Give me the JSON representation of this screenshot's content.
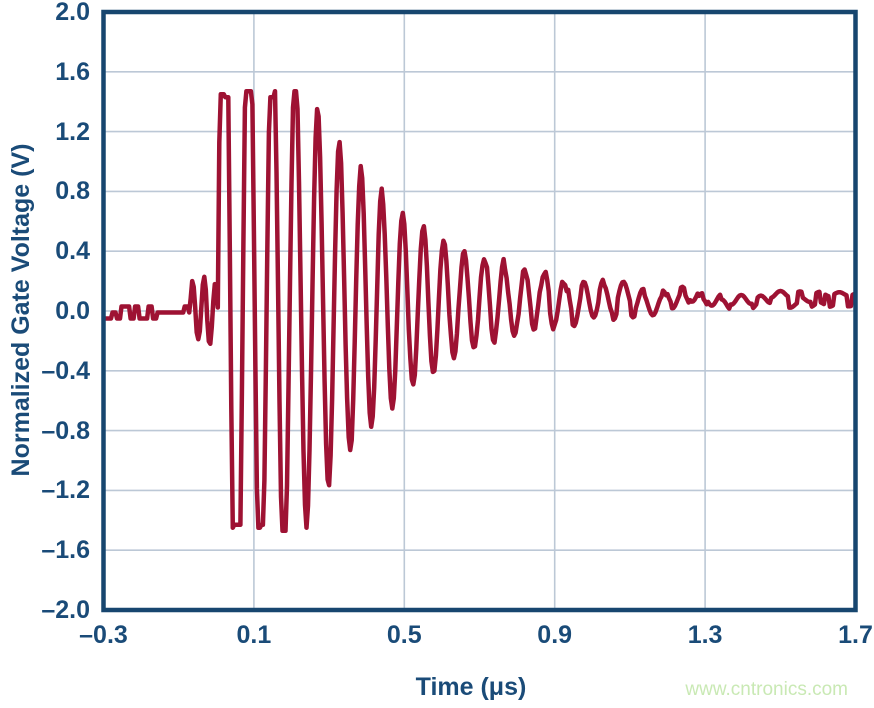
{
  "page": {
    "background_color": "#ffffff",
    "text_color": "#1a4b78"
  },
  "watermark": {
    "text": "www.cntronics.com",
    "color": "#c9e9b4"
  },
  "chart_data": {
    "type": "line",
    "title": "",
    "xlabel": "Time (μs)",
    "ylabel": "Normalized Gate Voltage (V)",
    "xlim": [
      -0.3,
      1.7
    ],
    "ylim": [
      -2.0,
      2.0
    ],
    "x_ticks": {
      "values": [
        -0.3,
        0.1,
        0.5,
        0.9,
        1.3,
        1.7
      ],
      "labels": [
        "–0.3",
        "0.1",
        "0.5",
        "0.9",
        "1.3",
        "1.7"
      ]
    },
    "y_ticks": {
      "values": [
        2.0,
        1.6,
        1.2,
        0.8,
        0.4,
        0.0,
        -0.4,
        -0.8,
        -1.2,
        -1.6,
        -2.0
      ],
      "labels": [
        "2.0",
        "1.6",
        "1.2",
        "0.8",
        "0.4",
        "0.0",
        "–0.4",
        "–0.8",
        "–1.2",
        "–1.6",
        "–2.0"
      ]
    },
    "grid": {
      "horizontal": true,
      "vertical": true,
      "color": "#bcc8d6",
      "width": 1.6
    },
    "frame": {
      "color": "#17466f",
      "width": 4.5
    },
    "legend": null,
    "series": [
      {
        "name": "normalized-gate-voltage",
        "color": "#9e1233",
        "stroke_width": 4.5,
        "readings": {
          "flat_baseline_level_pre_event": -0.01,
          "baseline_noise_band": 0.08,
          "precursor_wiggle_peak": 0.21,
          "clipped_peak_level": 1.45,
          "clipped_trough_level": -1.45,
          "clipping_ends_at_us": 0.22,
          "ring_period_us_start": 0.068,
          "ring_period_us_end": 0.052,
          "amplitude_at_0p5us": 0.66,
          "amplitude_at_1p1us": 0.12,
          "settled_level_post_event": 0.08
        },
        "waveform_model": {
          "sample_dt_us": 0.004,
          "noise_hold_samples": 3,
          "seed": 11,
          "baseline_pre": {
            "level": -0.01,
            "noise": 0.04
          },
          "precursor": {
            "t_start_us": -0.07,
            "amplitude": 0.21,
            "period_us": 0.03,
            "noise": 0.02
          },
          "burst": {
            "t_start_us": 0.005,
            "initial_amplitude": 3.2,
            "decay_tau_us": 0.3,
            "period_start_us": 0.068,
            "period_end_us": 0.052,
            "chirp_tau_us": 0.3,
            "clip_level": 1.45,
            "settle_offset": 0.08,
            "settle_tau_us": 0.45,
            "noise_during_ring": 0.02,
            "ring_noise_threshold": 0.3
          },
          "baseline_post": {
            "noise": 0.035
          }
        }
      }
    ]
  }
}
